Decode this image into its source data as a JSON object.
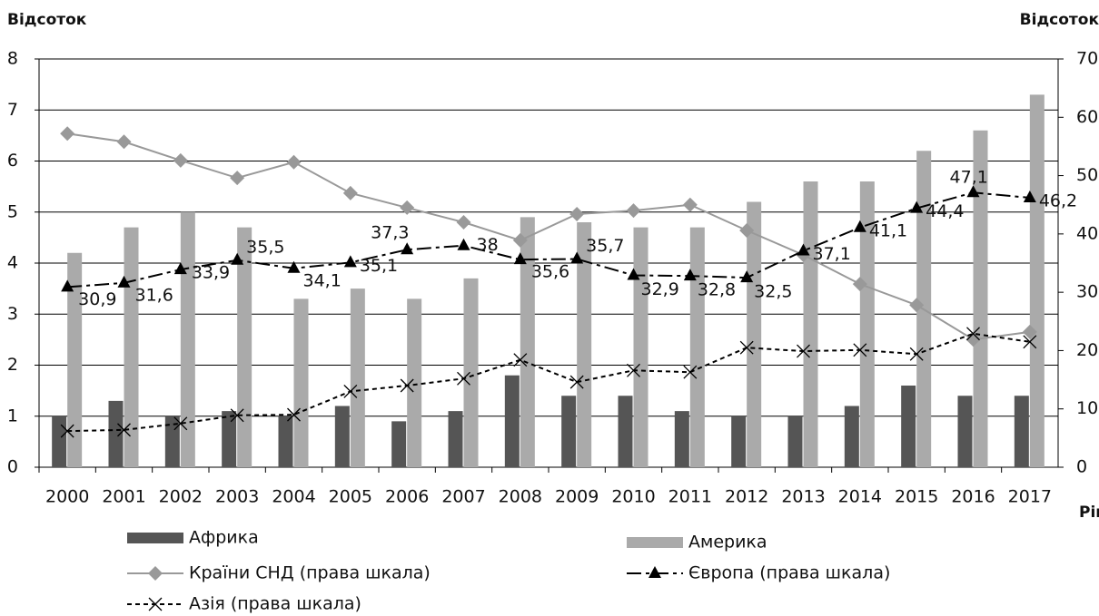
{
  "chart_data": {
    "type": "bar",
    "y_axis_title": "Відсоток",
    "y2_axis_title": "Відсоток",
    "x_axis_title": "Рік",
    "categories": [
      "2000",
      "2001",
      "2002",
      "2003",
      "2004",
      "2005",
      "2006",
      "2007",
      "2008",
      "2009",
      "2010",
      "2011",
      "2012",
      "2013",
      "2014",
      "2015",
      "2016",
      "2017"
    ],
    "ylim": [
      0,
      8
    ],
    "yticks": [
      0,
      1,
      2,
      3,
      4,
      5,
      6,
      7,
      8
    ],
    "y2lim": [
      0,
      70
    ],
    "y2ticks": [
      0,
      10,
      20,
      30,
      40,
      50,
      60,
      70
    ],
    "grid": true,
    "series": [
      {
        "name": "Африка",
        "type": "bar",
        "color": "#555555",
        "values": [
          1.0,
          1.3,
          1.0,
          1.1,
          1.0,
          1.2,
          0.9,
          1.1,
          1.8,
          1.4,
          1.4,
          1.1,
          1.0,
          1.0,
          1.2,
          1.6,
          1.4,
          1.4
        ]
      },
      {
        "name": "Америка",
        "type": "bar",
        "color": "#aaaaaa",
        "values": [
          4.2,
          4.7,
          5.0,
          4.7,
          3.3,
          3.5,
          3.3,
          3.7,
          4.9,
          4.8,
          4.7,
          4.7,
          5.2,
          5.6,
          5.6,
          6.2,
          6.6,
          7.3
        ]
      },
      {
        "name": "Країни СНД (права шкала)",
        "type": "line",
        "axis": "y2",
        "color": "#999999",
        "marker": "diamond",
        "values": [
          57.2,
          55.8,
          52.6,
          49.6,
          52.3,
          47,
          44.5,
          42,
          38.9,
          43.4,
          44,
          45,
          40.6,
          36.4,
          31.4,
          27.8,
          21.9,
          23.2
        ]
      },
      {
        "name": "Європа (права шкала)",
        "type": "line",
        "axis": "y2",
        "color": "#000000",
        "marker": "triangle",
        "dash": "dashdot",
        "values": [
          30.9,
          31.6,
          33.9,
          35.5,
          34.1,
          35.1,
          37.3,
          38,
          35.6,
          35.7,
          32.9,
          32.8,
          32.5,
          37.1,
          41.1,
          44.4,
          47.1,
          46.2
        ],
        "value_labels": [
          "30,9",
          "31,6",
          "33,9",
          "35,5",
          "34,1",
          "35,1",
          "37,3",
          "38",
          "35,6",
          "35,7",
          "32,9",
          "32,8",
          "32,5",
          "37,1",
          "41,1",
          "44,4",
          "47,1",
          "46,2"
        ]
      },
      {
        "name": "Азія (права шкала)",
        "type": "line",
        "axis": "y2",
        "color": "#000000",
        "marker": "x",
        "dash": "dotted",
        "values": [
          6.2,
          6.4,
          7.5,
          8.9,
          9,
          13,
          14,
          15.2,
          18.4,
          14.6,
          16.6,
          16.3,
          20.5,
          19.9,
          20.1,
          19.4,
          22.9,
          21.5
        ]
      }
    ]
  }
}
